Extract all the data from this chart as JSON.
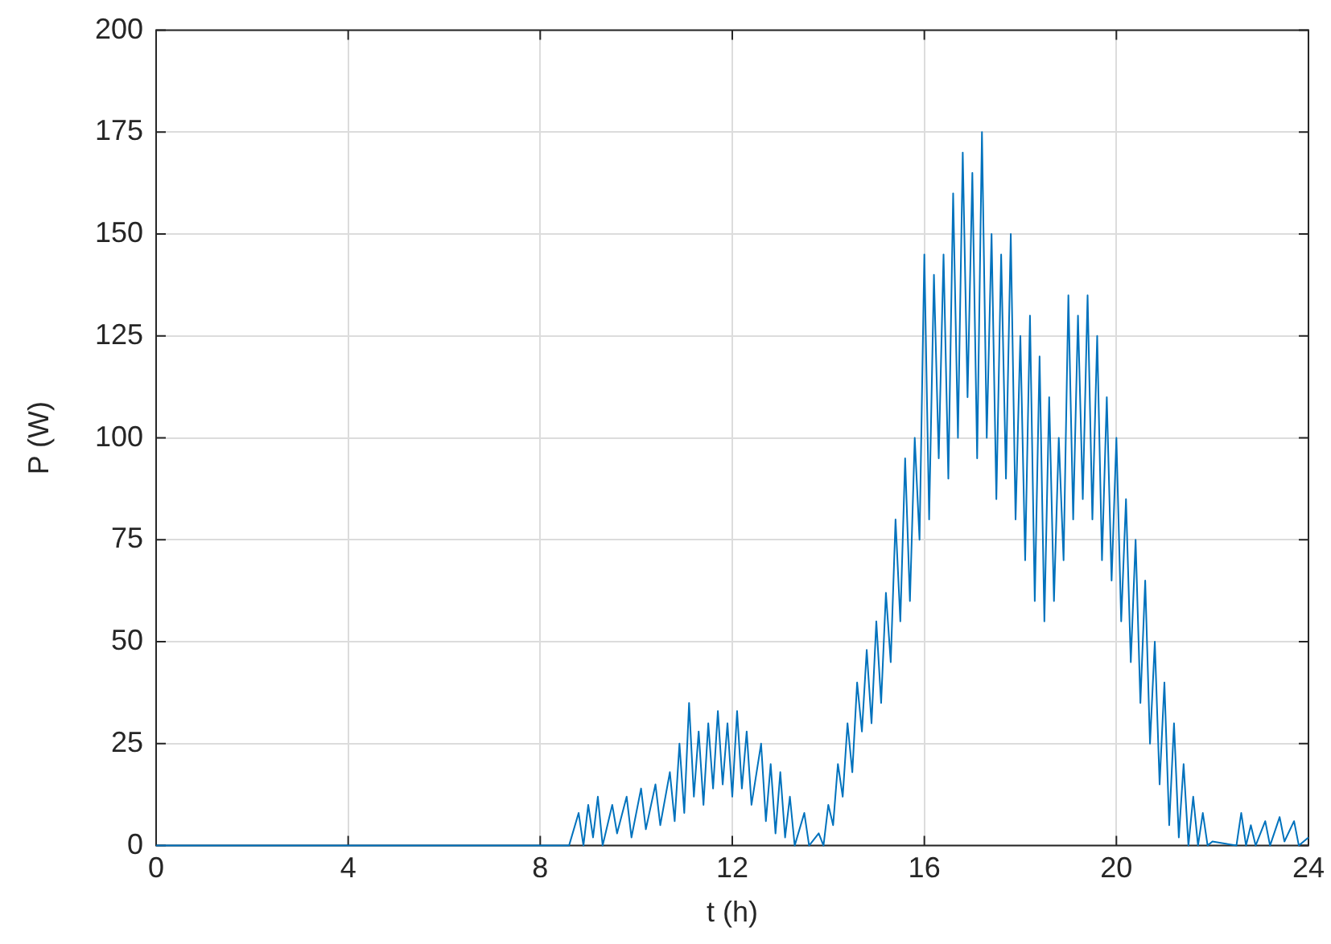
{
  "chart_data": {
    "type": "line",
    "xlabel": "t (h)",
    "ylabel": "P (W)",
    "xlim": [
      0,
      24
    ],
    "xticks": [
      0,
      4,
      8,
      12,
      16,
      20,
      24
    ],
    "ylim": [
      0,
      200
    ],
    "yticks": [
      0,
      25,
      50,
      75,
      100,
      125,
      150,
      175,
      200
    ],
    "grid": true,
    "legend": false,
    "marker": "none",
    "line_style": "solid",
    "x": [
      0,
      8.6,
      8.8,
      8.9,
      9.0,
      9.1,
      9.2,
      9.3,
      9.5,
      9.6,
      9.8,
      9.9,
      10.1,
      10.2,
      10.4,
      10.5,
      10.7,
      10.8,
      10.9,
      11.0,
      11.1,
      11.2,
      11.3,
      11.4,
      11.5,
      11.6,
      11.7,
      11.8,
      11.9,
      12.0,
      12.1,
      12.2,
      12.3,
      12.4,
      12.6,
      12.7,
      12.8,
      12.9,
      13.0,
      13.1,
      13.2,
      13.3,
      13.5,
      13.6,
      13.8,
      13.9,
      14.0,
      14.1,
      14.2,
      14.3,
      14.4,
      14.5,
      14.6,
      14.7,
      14.8,
      14.9,
      15.0,
      15.1,
      15.2,
      15.3,
      15.4,
      15.5,
      15.6,
      15.7,
      15.8,
      15.9,
      16.0,
      16.1,
      16.2,
      16.3,
      16.4,
      16.5,
      16.6,
      16.7,
      16.8,
      16.9,
      17.0,
      17.1,
      17.2,
      17.3,
      17.4,
      17.5,
      17.6,
      17.7,
      17.8,
      17.9,
      18.0,
      18.1,
      18.2,
      18.3,
      18.4,
      18.5,
      18.6,
      18.7,
      18.8,
      18.9,
      19.0,
      19.1,
      19.2,
      19.3,
      19.4,
      19.5,
      19.6,
      19.7,
      19.8,
      19.9,
      20.0,
      20.1,
      20.2,
      20.3,
      20.4,
      20.5,
      20.6,
      20.7,
      20.8,
      20.9,
      21.0,
      21.1,
      21.2,
      21.3,
      21.4,
      21.5,
      21.6,
      21.7,
      21.8,
      21.9,
      22.0,
      22.5,
      22.6,
      22.7,
      22.8,
      22.9,
      23.1,
      23.2,
      23.4,
      23.5,
      23.7,
      23.8,
      24
    ],
    "series": [
      {
        "color": "#0072bd",
        "values": [
          0,
          0,
          8,
          0,
          10,
          2,
          12,
          0,
          10,
          3,
          12,
          2,
          14,
          4,
          15,
          5,
          18,
          6,
          25,
          8,
          35,
          12,
          28,
          10,
          30,
          14,
          33,
          15,
          30,
          12,
          33,
          14,
          28,
          10,
          25,
          6,
          20,
          3,
          18,
          2,
          12,
          0,
          8,
          0,
          3,
          0,
          10,
          5,
          20,
          12,
          30,
          18,
          40,
          28,
          48,
          30,
          55,
          35,
          62,
          45,
          80,
          55,
          95,
          60,
          100,
          75,
          145,
          80,
          140,
          95,
          145,
          90,
          160,
          100,
          170,
          110,
          165,
          95,
          175,
          100,
          150,
          85,
          145,
          90,
          150,
          80,
          125,
          70,
          130,
          60,
          120,
          55,
          110,
          60,
          100,
          70,
          135,
          80,
          130,
          85,
          135,
          80,
          125,
          70,
          110,
          65,
          100,
          55,
          85,
          45,
          75,
          35,
          65,
          25,
          50,
          15,
          40,
          5,
          30,
          2,
          20,
          0,
          12,
          0,
          8,
          0,
          1,
          0,
          8,
          0,
          5,
          0,
          6,
          0,
          7,
          1,
          6,
          0,
          2
        ]
      }
    ]
  }
}
